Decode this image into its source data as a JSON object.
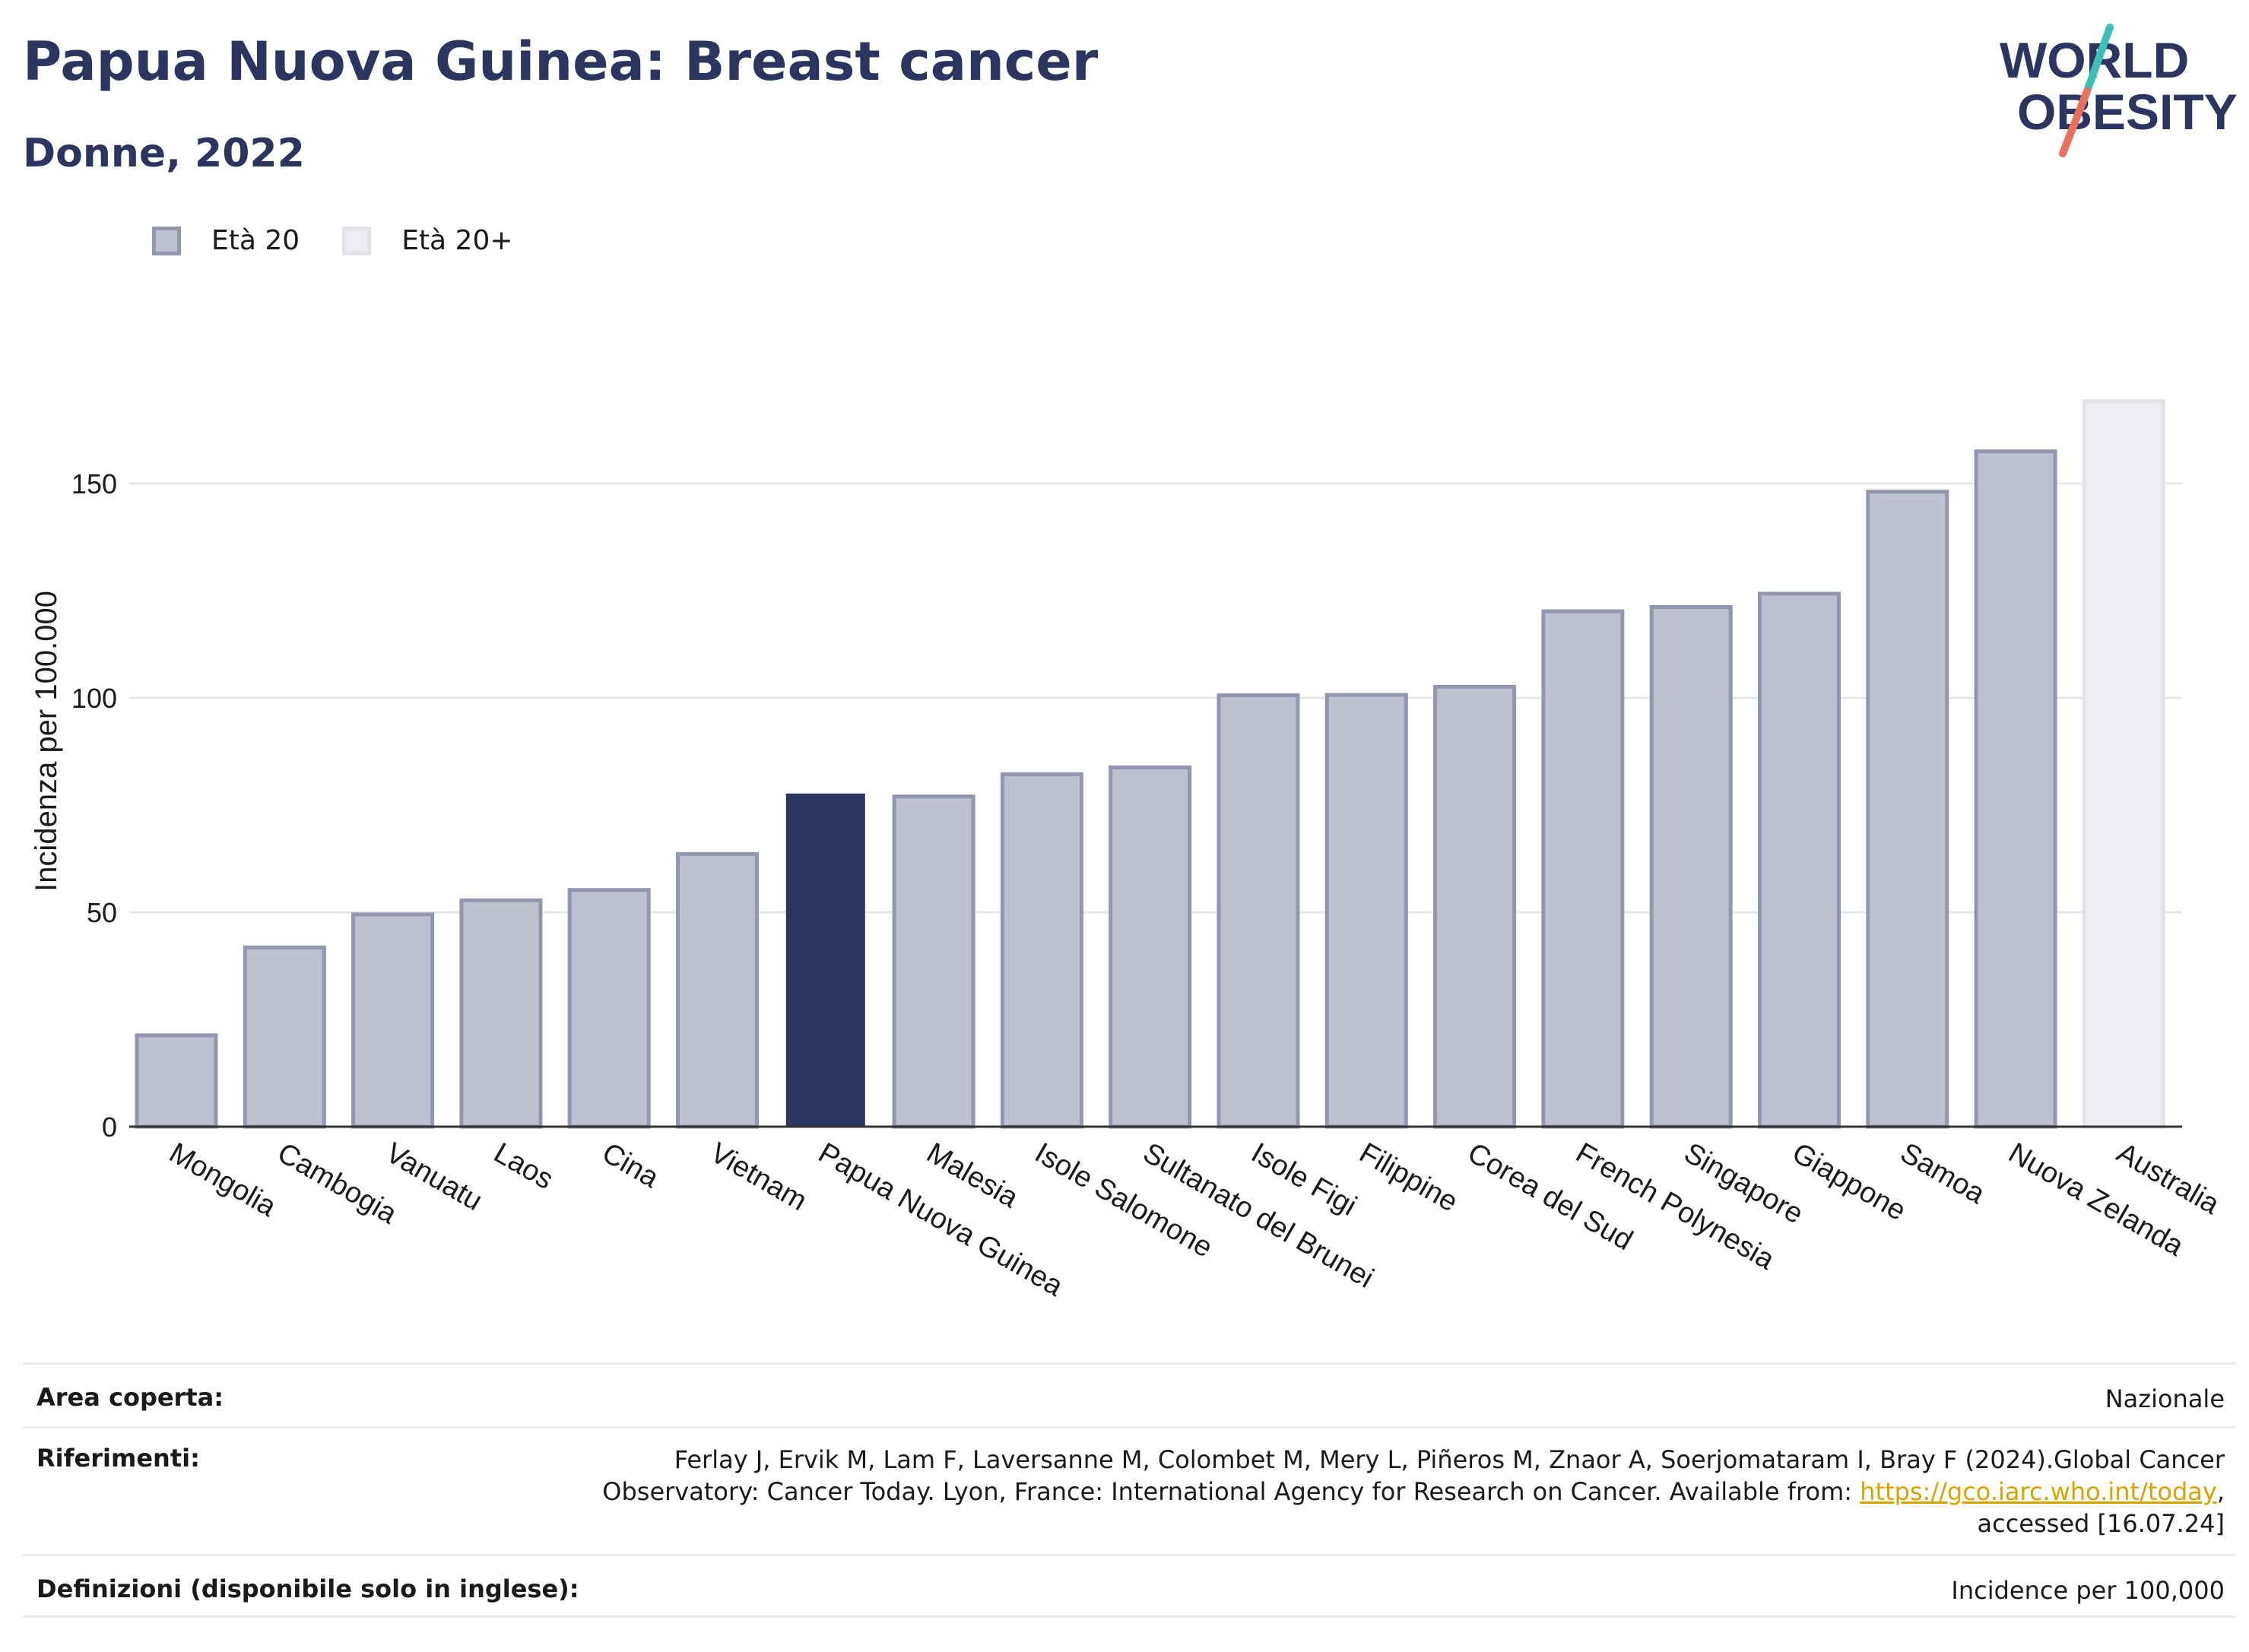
{
  "title": "Papua Nuova Guinea: Breast cancer",
  "subtitle": "Donne, 2022",
  "logo": {
    "line1": "WORLD",
    "line2": "OBESITY"
  },
  "legend": [
    {
      "label": "Età 20",
      "color": "#bfc2ce"
    },
    {
      "label": "Età 20+",
      "color": "#eeeef2"
    }
  ],
  "colors": {
    "bar": "#bfc2ce",
    "bar_border": "#9296ae",
    "highlight": "#2b3560",
    "faded": "#eeeef2",
    "faded_border": "#e2e3e9"
  },
  "chart_data": {
    "type": "bar",
    "title": "Papua Nuova Guinea: Breast cancer",
    "subtitle": "Donne, 2022",
    "ylabel": "Incidenza per 100.000",
    "xlabel": "",
    "ylim": [
      0,
      175
    ],
    "yticks": [
      0,
      50,
      100,
      150
    ],
    "grid": true,
    "legend_position": "top-left",
    "categories": [
      "Mongolia",
      "Cambogia",
      "Vanuatu",
      "Laos",
      "Cina",
      "Vietnam",
      "Papua Nuova Guinea",
      "Malesia",
      "Isole Salomone",
      "Sultanato del Brunei",
      "Isole Figi",
      "Filippine",
      "Corea del Sud",
      "French Polynesia",
      "Singapore",
      "Giappone",
      "Samoa",
      "Nuova Zelanda",
      "Australia"
    ],
    "values": [
      21.3,
      41.8,
      49.5,
      52.8,
      55.2,
      63.6,
      77.7,
      77.0,
      82.2,
      83.8,
      100.6,
      100.7,
      102.6,
      120.2,
      121.2,
      124.3,
      148.1,
      157.5,
      169.2
    ],
    "series_of_bar": [
      "Età 20",
      "Età 20",
      "Età 20",
      "Età 20",
      "Età 20",
      "Età 20",
      "Età 20",
      "Età 20",
      "Età 20",
      "Età 20",
      "Età 20",
      "Età 20",
      "Età 20",
      "Età 20",
      "Età 20",
      "Età 20",
      "Età 20",
      "Età 20",
      "Età 20+"
    ],
    "highlight": "Papua Nuova Guinea"
  },
  "info": {
    "area_label": "Area coperta:",
    "area_value": "Nazionale",
    "ref_label": "Riferimenti:",
    "ref_text_1": "Ferlay J, Ervik M, Lam F, Laversanne M, Colombet M, Mery L, Piñeros M, Znaor A, Soerjomataram I, Bray F (2024).Global Cancer",
    "ref_text_2": "Observatory: Cancer Today. Lyon, France: International Agency for Research on Cancer. Available from: ",
    "ref_link": "https://gco.iarc.who.int/today",
    "ref_text_3": ",",
    "ref_text_4": "accessed [16.07.24]",
    "def_label": "Definizioni (disponibile solo in inglese):",
    "def_value": "Incidence per 100,000"
  }
}
